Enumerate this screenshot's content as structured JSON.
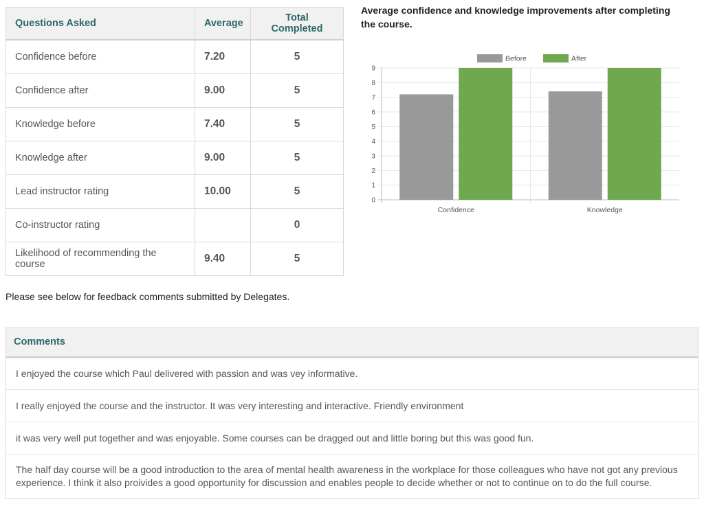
{
  "summary_table": {
    "headers": [
      "Questions Asked",
      "Average",
      "Total Completed"
    ],
    "rows": [
      {
        "question": "Confidence before",
        "average": "7.20",
        "total": "5"
      },
      {
        "question": "Confidence after",
        "average": "9.00",
        "total": "5"
      },
      {
        "question": "Knowledge before",
        "average": "7.40",
        "total": "5"
      },
      {
        "question": "Knowledge after",
        "average": "9.00",
        "total": "5"
      },
      {
        "question": "Lead instructor rating",
        "average": "10.00",
        "total": "5"
      },
      {
        "question": "Co-instructor rating",
        "average": "",
        "total": "0"
      },
      {
        "question": "Likelihood of recommending the course",
        "average": "9.40",
        "total": "5"
      }
    ]
  },
  "feedback_note": "Please see below for feedback comments submitted by Delegates.",
  "comments": {
    "header": "Comments",
    "items": [
      "I enjoyed the course which Paul delivered with passion and was vey informative.",
      "I really enjoyed the course and the instructor. It was very interesting and interactive. Friendly environment",
      "it was very well put together and was enjoyable. Some courses can be dragged out and little boring but this was good fun.",
      "The half day course will be a good introduction to the area of mental health awareness in the workplace for those colleagues who have not got any previous experience. I think it also proivides a good opportunity for discussion and enables people to decide whether or not to continue on to do the full course."
    ]
  },
  "chart_data": {
    "type": "bar",
    "title": "Average confidence and knowledge improvements after completing the course.",
    "categories": [
      "Confidence",
      "Knowledge"
    ],
    "series": [
      {
        "name": "Before",
        "values": [
          7.2,
          7.4
        ],
        "color": "#999999"
      },
      {
        "name": "After",
        "values": [
          9.0,
          9.0
        ],
        "color": "#70a850"
      }
    ],
    "ylim": [
      0,
      9
    ],
    "yticks": [
      0,
      1,
      2,
      3,
      4,
      5,
      6,
      7,
      8,
      9
    ],
    "grid": true,
    "legend_position": "top"
  }
}
